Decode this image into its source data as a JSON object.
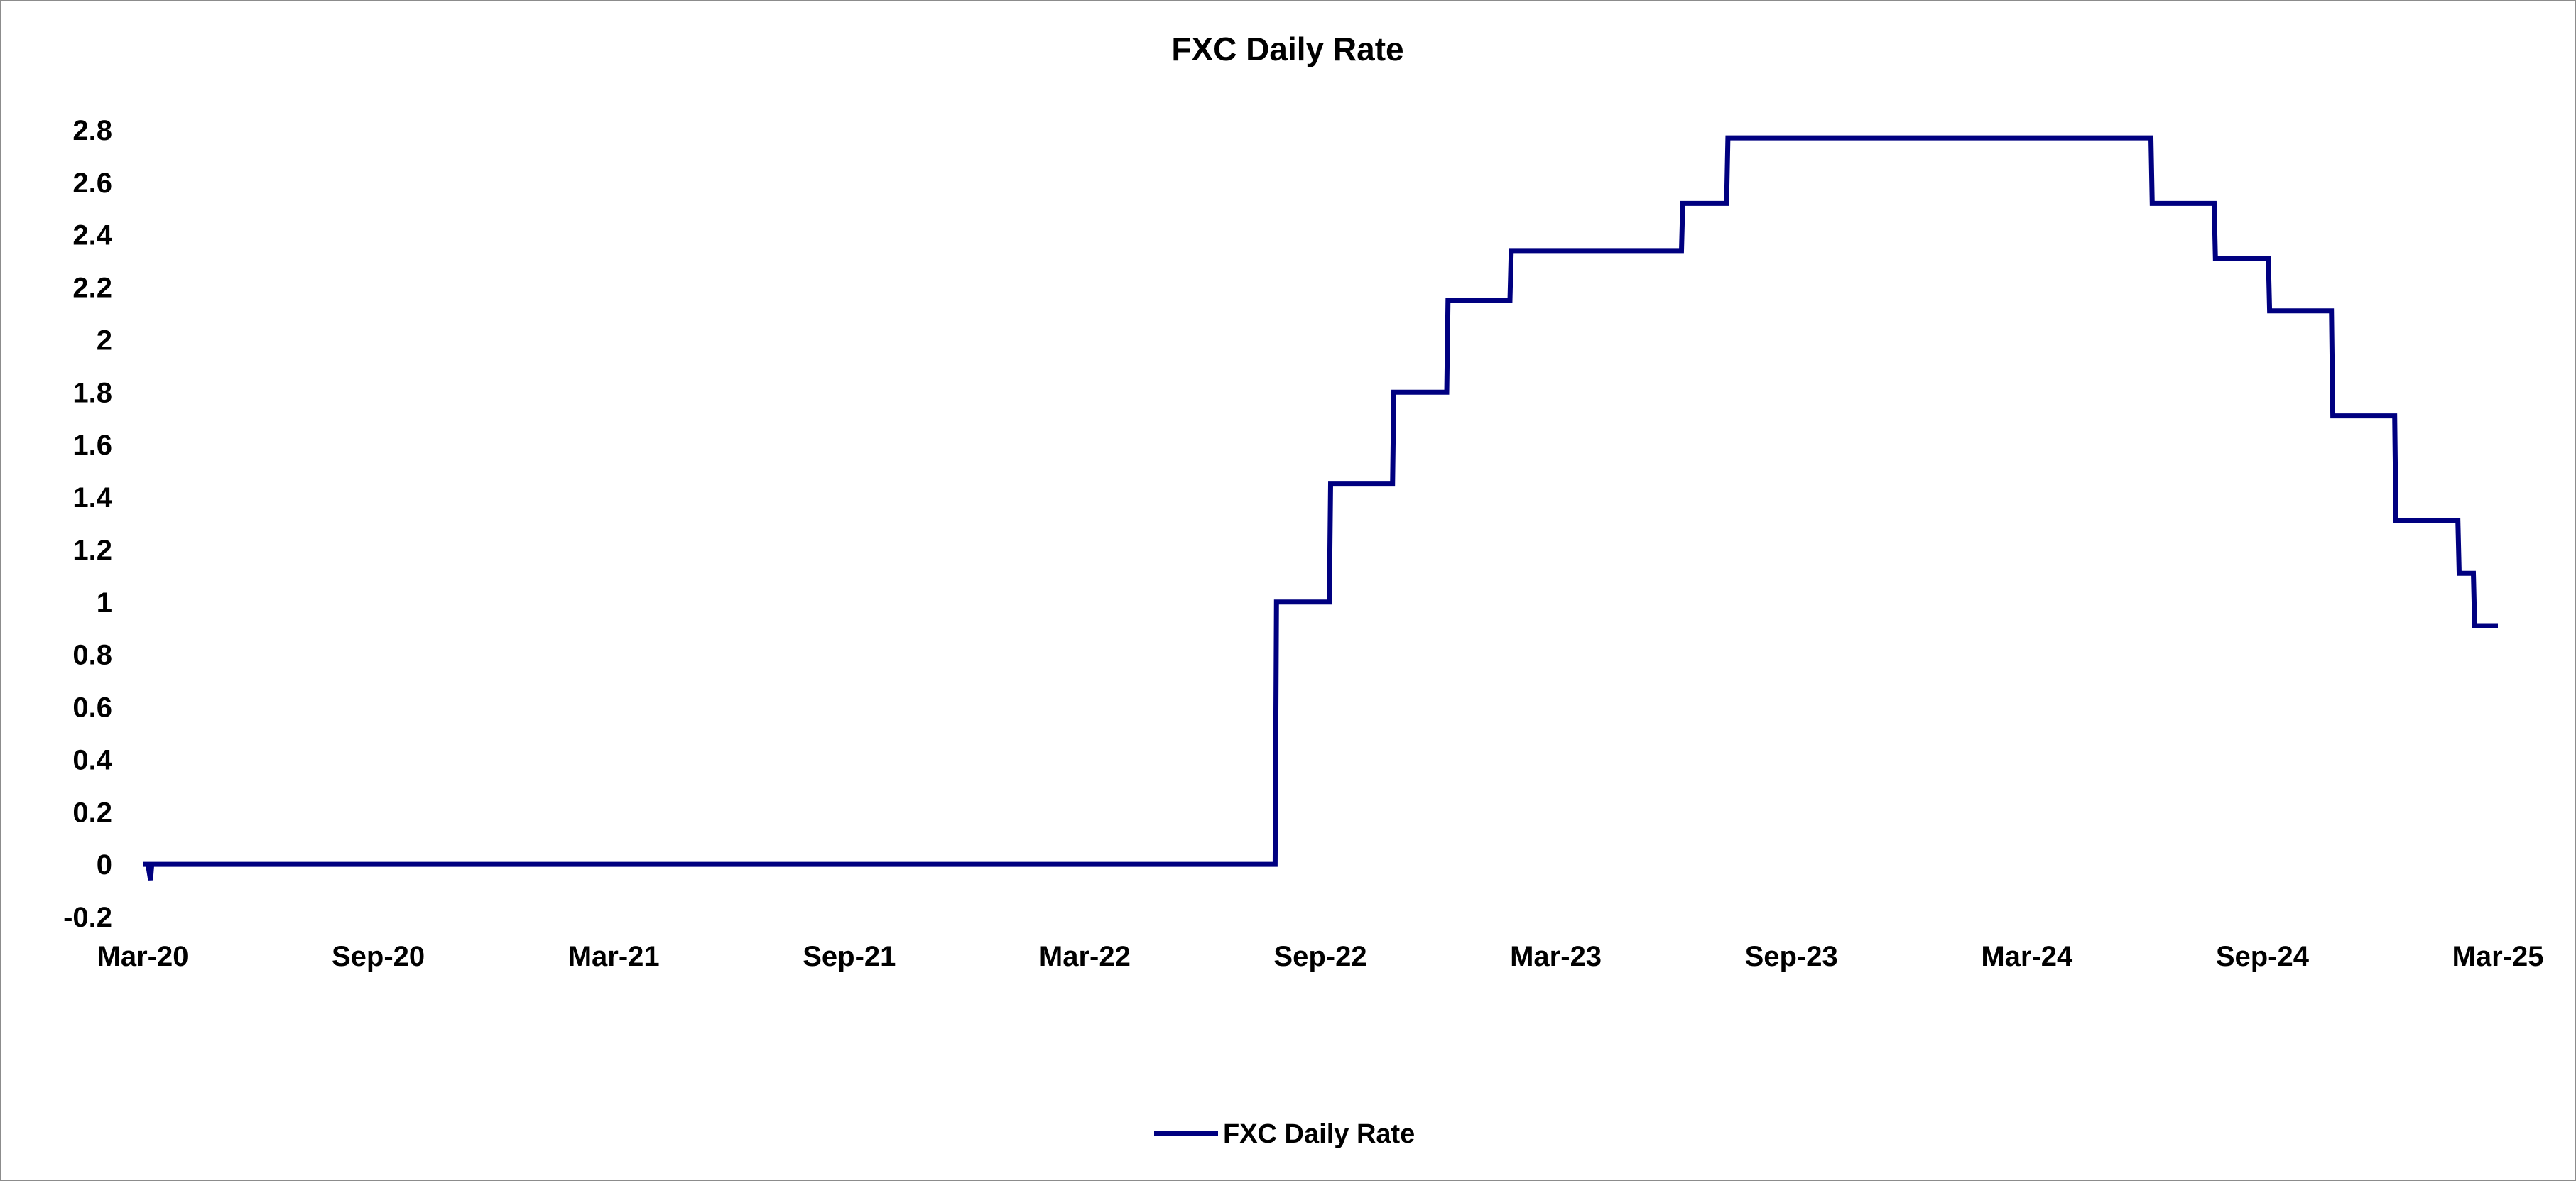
{
  "chart_data": {
    "type": "line",
    "title": "FXC Daily Rate",
    "xlabel": "",
    "ylabel": "",
    "x_tick_labels": [
      "Mar-20",
      "Sep-20",
      "Mar-21",
      "Sep-21",
      "Mar-22",
      "Sep-22",
      "Mar-23",
      "Sep-23",
      "Mar-24",
      "Sep-24",
      "Mar-25"
    ],
    "y_tick_labels": [
      "-0.2",
      "0",
      "0.2",
      "0.4",
      "0.6",
      "0.8",
      "1",
      "1.2",
      "1.4",
      "1.6",
      "1.8",
      "2",
      "2.2",
      "2.4",
      "2.6",
      "2.8"
    ],
    "xlim": [
      "2020-03-01",
      "2025-03-01"
    ],
    "ylim": [
      -0.2,
      2.8
    ],
    "grid": false,
    "legend_position": "bottom-center",
    "series": [
      {
        "name": "FXC Daily Rate",
        "color": "#000080",
        "points": [
          {
            "x": "2020-03-01",
            "y": 0
          },
          {
            "x": "2020-03-05",
            "y": 0
          },
          {
            "x": "2020-03-07",
            "y": -0.06
          },
          {
            "x": "2020-03-08",
            "y": 0
          },
          {
            "x": "2022-07-27",
            "y": 0
          },
          {
            "x": "2022-07-28",
            "y": 1.0
          },
          {
            "x": "2022-09-07",
            "y": 1.0
          },
          {
            "x": "2022-09-08",
            "y": 1.45
          },
          {
            "x": "2022-10-26",
            "y": 1.45
          },
          {
            "x": "2022-10-27",
            "y": 1.8
          },
          {
            "x": "2022-12-07",
            "y": 1.8
          },
          {
            "x": "2022-12-08",
            "y": 2.15
          },
          {
            "x": "2023-01-25",
            "y": 2.15
          },
          {
            "x": "2023-01-26",
            "y": 2.34
          },
          {
            "x": "2023-06-07",
            "y": 2.34
          },
          {
            "x": "2023-06-08",
            "y": 2.52
          },
          {
            "x": "2023-07-12",
            "y": 2.52
          },
          {
            "x": "2023-07-13",
            "y": 2.77
          },
          {
            "x": "2024-06-05",
            "y": 2.77
          },
          {
            "x": "2024-06-06",
            "y": 2.52
          },
          {
            "x": "2024-07-24",
            "y": 2.52
          },
          {
            "x": "2024-07-25",
            "y": 2.31
          },
          {
            "x": "2024-09-04",
            "y": 2.31
          },
          {
            "x": "2024-09-05",
            "y": 2.11
          },
          {
            "x": "2024-10-23",
            "y": 2.11
          },
          {
            "x": "2024-10-24",
            "y": 1.71
          },
          {
            "x": "2024-12-11",
            "y": 1.71
          },
          {
            "x": "2024-12-12",
            "y": 1.31
          },
          {
            "x": "2025-01-29",
            "y": 1.31
          },
          {
            "x": "2025-01-30",
            "y": 1.11
          },
          {
            "x": "2025-02-10",
            "y": 1.11
          },
          {
            "x": "2025-02-11",
            "y": 0.91
          },
          {
            "x": "2025-03-01",
            "y": 0.91
          }
        ]
      }
    ]
  }
}
